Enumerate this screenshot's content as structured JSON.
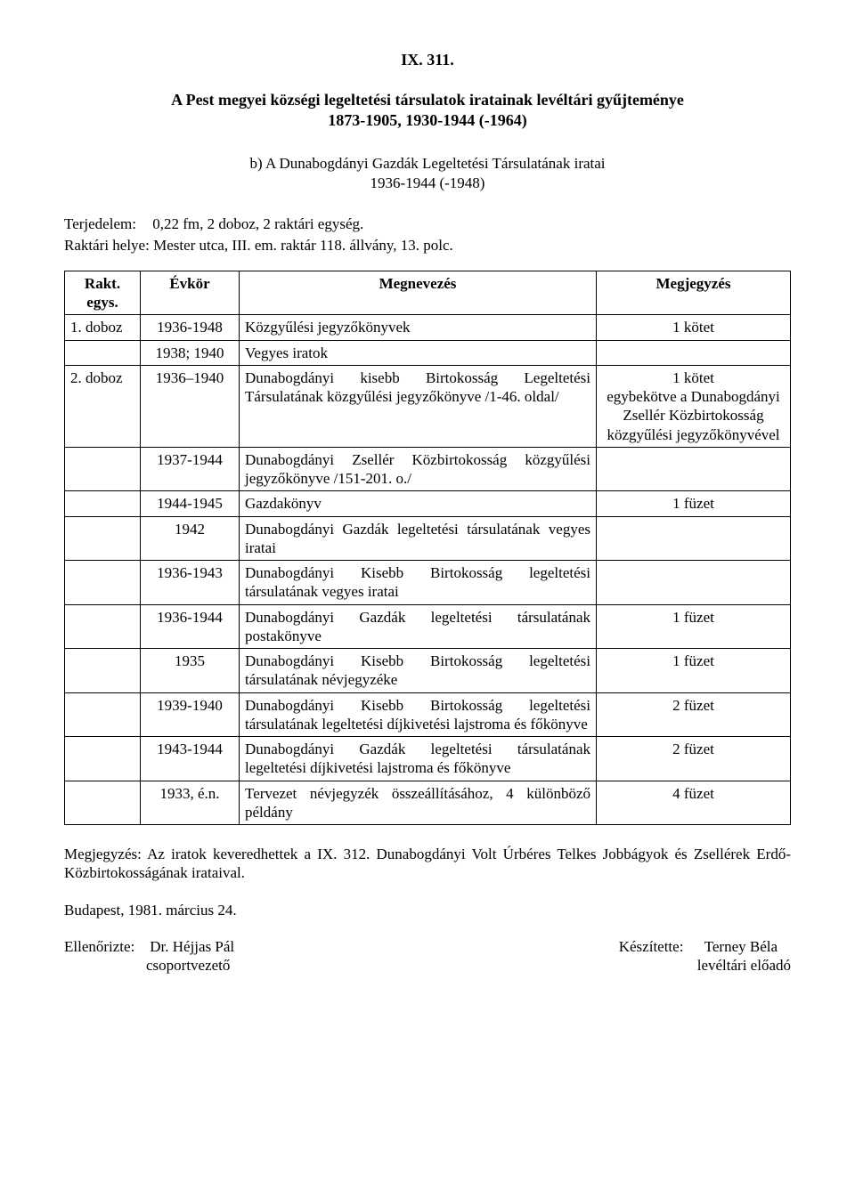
{
  "ref_num": "IX. 311.",
  "title_line1": "A Pest megyei községi legeltetési társulatok iratainak levéltári gyűjteménye",
  "title_line2": "1873-1905, 1930-1944 (-1964)",
  "subtitle_line1": "b) A Dunabogdányi Gazdák Legeltetési Társulatának iratai",
  "subtitle_line2": "1936-1944 (-1948)",
  "extent_label": "Terjedelem:",
  "extent_value": "0,22 fm, 2 doboz, 2 raktári egység.",
  "storage_line": "Raktári helye: Mester utca, III. em. raktár 118. állvány, 13. polc.",
  "headers": {
    "box": "Rakt. egys.",
    "year": "Évkör",
    "desc": "Megnevezés",
    "note": "Megjegyzés"
  },
  "rows": [
    {
      "box": "1. doboz",
      "year": "1936-1948",
      "desc": "Közgyűlési jegyzőkönyvek",
      "note": "1 kötet"
    },
    {
      "box": "",
      "year": "1938; 1940",
      "desc": "Vegyes iratok",
      "note": ""
    },
    {
      "box": "2. doboz",
      "year": "1936–1940",
      "desc": "Dunabogdányi kisebb Birtokosság Legeltetési Társulatának közgyűlési jegyzőkönyve /1-46. oldal/",
      "note": "1 kötet\negybekötve a Dunabogdányi Zsellér Közbirtokosság közgyűlési jegyzőkönyvével"
    },
    {
      "box": "",
      "year": "1937-1944",
      "desc": "Dunabogdányi Zsellér Közbirtokosság közgyűlési jegyzőkönyve /151-201. o./",
      "note": ""
    },
    {
      "box": "",
      "year": "1944-1945",
      "desc": "Gazdakönyv",
      "note": "1 füzet"
    },
    {
      "box": "",
      "year": "1942",
      "desc": "Dunabogdányi Gazdák legeltetési társulatának vegyes iratai",
      "note": ""
    },
    {
      "box": "",
      "year": "1936-1943",
      "desc": "Dunabogdányi Kisebb Birtokosság legeltetési társulatának vegyes iratai",
      "note": ""
    },
    {
      "box": "",
      "year": "1936-1944",
      "desc": "Dunabogdányi Gazdák legeltetési társulatának postakönyve",
      "note": "1 füzet"
    },
    {
      "box": "",
      "year": "1935",
      "desc": "Dunabogdányi Kisebb Birtokosság legeltetési társulatának névjegyzéke",
      "note": "1 füzet"
    },
    {
      "box": "",
      "year": "1939-1940",
      "desc": "Dunabogdányi Kisebb Birtokosság legeltetési társulatának legeltetési díjkivetési lajstroma és főkönyve",
      "note": "2 füzet"
    },
    {
      "box": "",
      "year": "1943-1944",
      "desc": "Dunabogdányi Gazdák legeltetési társulatának legeltetési díjkivetési lajstroma és főkönyve",
      "note": "2 füzet"
    },
    {
      "box": "",
      "year": "1933, é.n.",
      "desc": "Tervezet névjegyzék összeállításához, 4 különböző példány",
      "note": "4 füzet"
    }
  ],
  "note_text": "Megjegyzés: Az iratok keveredhettek a IX. 312. Dunabogdányi Volt Úrbéres Telkes Jobbágyok és Zsellérek Erdő-Közbirtokosságának irataival.",
  "date_line": "Budapest, 1981. március 24.",
  "sign_left_label": "Ellenőrizte:",
  "sign_left_name": "Dr. Héjjas Pál",
  "sign_left_role": "csoportvezető",
  "sign_right_label": "Készítette:",
  "sign_right_name": "Terney Béla",
  "sign_right_role": "levéltári előadó"
}
